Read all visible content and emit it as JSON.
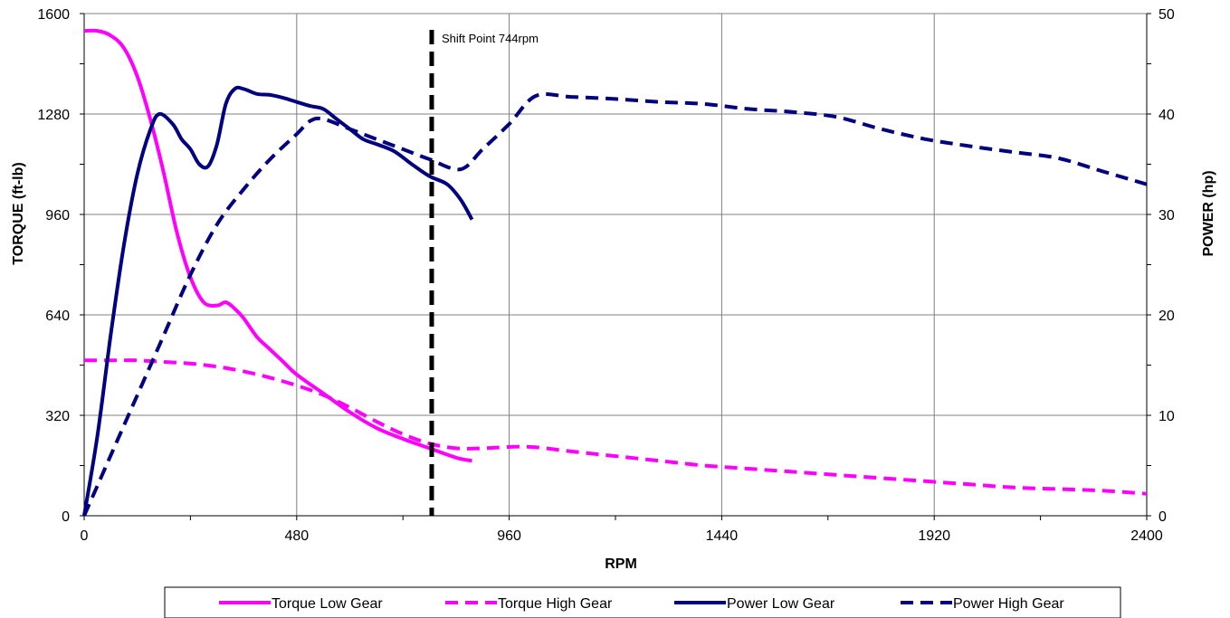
{
  "chart_data": {
    "type": "line",
    "xlabel": "RPM",
    "ylabel": "TORQUE (ft-lb)",
    "y2label": "POWER (hp)",
    "xlim": [
      0,
      2400
    ],
    "ylim": [
      0,
      1600
    ],
    "y2lim": [
      0,
      50
    ],
    "x_ticks": [
      "0",
      "480",
      "960",
      "1440",
      "1920",
      "2400"
    ],
    "y_ticks": [
      "0",
      "320",
      "640",
      "960",
      "1280",
      "1600"
    ],
    "y2_ticks": [
      "0",
      "10",
      "20",
      "30",
      "40",
      "50"
    ],
    "grid": true,
    "legend_position": "bottom",
    "annotation": {
      "text": "Shift Point 744rpm",
      "x": 785
    },
    "series": [
      {
        "name": "Torque Low Gear",
        "axis": "left",
        "style": "solid",
        "color": "#ff00ff",
        "points": [
          [
            0,
            1545
          ],
          [
            30,
            1545
          ],
          [
            60,
            1530
          ],
          [
            90,
            1490
          ],
          [
            120,
            1400
          ],
          [
            150,
            1260
          ],
          [
            180,
            1090
          ],
          [
            210,
            900
          ],
          [
            240,
            760
          ],
          [
            270,
            680
          ],
          [
            300,
            670
          ],
          [
            320,
            680
          ],
          [
            340,
            660
          ],
          [
            360,
            630
          ],
          [
            390,
            570
          ],
          [
            420,
            530
          ],
          [
            450,
            490
          ],
          [
            480,
            450
          ],
          [
            540,
            390
          ],
          [
            600,
            330
          ],
          [
            660,
            280
          ],
          [
            720,
            245
          ],
          [
            780,
            215
          ],
          [
            840,
            185
          ],
          [
            876,
            175
          ]
        ]
      },
      {
        "name": "Torque High Gear",
        "axis": "left",
        "style": "dashed",
        "color": "#ff00ff",
        "points": [
          [
            0,
            495
          ],
          [
            60,
            495
          ],
          [
            120,
            495
          ],
          [
            180,
            490
          ],
          [
            240,
            485
          ],
          [
            300,
            475
          ],
          [
            360,
            460
          ],
          [
            420,
            440
          ],
          [
            480,
            415
          ],
          [
            540,
            385
          ],
          [
            600,
            345
          ],
          [
            660,
            300
          ],
          [
            720,
            260
          ],
          [
            780,
            230
          ],
          [
            840,
            215
          ],
          [
            900,
            215
          ],
          [
            1000,
            220
          ],
          [
            1100,
            205
          ],
          [
            1200,
            190
          ],
          [
            1300,
            175
          ],
          [
            1400,
            160
          ],
          [
            1500,
            150
          ],
          [
            1600,
            140
          ],
          [
            1700,
            130
          ],
          [
            1800,
            120
          ],
          [
            1900,
            110
          ],
          [
            2000,
            100
          ],
          [
            2100,
            90
          ],
          [
            2200,
            85
          ],
          [
            2300,
            80
          ],
          [
            2400,
            70
          ]
        ]
      },
      {
        "name": "Power Low Gear",
        "axis": "right",
        "style": "solid",
        "color": "#000080",
        "points": [
          [
            0,
            0
          ],
          [
            30,
            8
          ],
          [
            60,
            18
          ],
          [
            90,
            27
          ],
          [
            120,
            34
          ],
          [
            150,
            38.5
          ],
          [
            170,
            40
          ],
          [
            200,
            39
          ],
          [
            220,
            37.5
          ],
          [
            240,
            36.5
          ],
          [
            260,
            35
          ],
          [
            280,
            34.8
          ],
          [
            300,
            37
          ],
          [
            320,
            41
          ],
          [
            340,
            42.5
          ],
          [
            360,
            42.5
          ],
          [
            390,
            42
          ],
          [
            420,
            41.9
          ],
          [
            450,
            41.6
          ],
          [
            480,
            41.2
          ],
          [
            510,
            40.8
          ],
          [
            540,
            40.5
          ],
          [
            570,
            39.5
          ],
          [
            600,
            38.5
          ],
          [
            630,
            37.5
          ],
          [
            660,
            37
          ],
          [
            700,
            36.3
          ],
          [
            740,
            35
          ],
          [
            780,
            33.8
          ],
          [
            820,
            33
          ],
          [
            850,
            31.5
          ],
          [
            876,
            29.5
          ]
        ]
      },
      {
        "name": "Power High Gear",
        "axis": "right",
        "style": "dashed",
        "color": "#000080",
        "points": [
          [
            0,
            0
          ],
          [
            60,
            6
          ],
          [
            120,
            12
          ],
          [
            180,
            18
          ],
          [
            240,
            24
          ],
          [
            300,
            29
          ],
          [
            360,
            32.5
          ],
          [
            420,
            35.5
          ],
          [
            480,
            38
          ],
          [
            510,
            39.3
          ],
          [
            540,
            39.5
          ],
          [
            600,
            38.5
          ],
          [
            660,
            37.5
          ],
          [
            720,
            36.5
          ],
          [
            780,
            35.5
          ],
          [
            850,
            34.5
          ],
          [
            900,
            36.5
          ],
          [
            960,
            39
          ],
          [
            1020,
            41.8
          ],
          [
            1100,
            41.7
          ],
          [
            1200,
            41.5
          ],
          [
            1300,
            41.2
          ],
          [
            1400,
            41
          ],
          [
            1500,
            40.5
          ],
          [
            1600,
            40.2
          ],
          [
            1700,
            39.7
          ],
          [
            1800,
            38.5
          ],
          [
            1900,
            37.5
          ],
          [
            2000,
            36.8
          ],
          [
            2100,
            36.2
          ],
          [
            2200,
            35.6
          ],
          [
            2300,
            34.3
          ],
          [
            2400,
            33
          ]
        ]
      }
    ]
  }
}
